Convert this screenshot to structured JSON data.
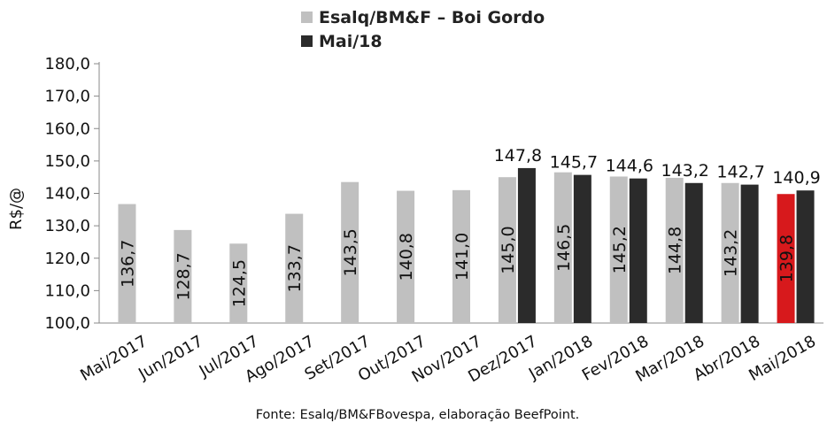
{
  "chart_data": {
    "type": "bar",
    "ylabel": "R$/@",
    "ylim": [
      100,
      180
    ],
    "yticks": [
      "100,0",
      "110,0",
      "120,0",
      "130,0",
      "140,0",
      "150,0",
      "160,0",
      "170,0",
      "180,0"
    ],
    "categories": [
      "Mai/2017",
      "Jun/2017",
      "Jul/2017",
      "Ago/2017",
      "Set/2017",
      "Out/2017",
      "Nov/2017",
      "Dez/2017",
      "Jan/2018",
      "Fev/2018",
      "Mar/2018",
      "Abr/2018",
      "Mai/2018"
    ],
    "series": [
      {
        "name": "Esalq/BM&F – Boi Gordo",
        "color": "#c0c0c0",
        "highlight_color": "#d7191c",
        "highlight_index": 12,
        "values": [
          136.7,
          128.7,
          124.5,
          133.7,
          143.5,
          140.8,
          141.0,
          145.0,
          146.5,
          145.2,
          144.8,
          143.2,
          139.8
        ],
        "labels": [
          "136,7",
          "128,7",
          "124,5",
          "133,7",
          "143,5",
          "140,8",
          "141,0",
          "145,0",
          "146,5",
          "145,2",
          "144,8",
          "143,2",
          "139,8"
        ]
      },
      {
        "name": "Mai/18",
        "color": "#2b2b2b",
        "values": [
          null,
          null,
          null,
          null,
          null,
          null,
          null,
          147.8,
          145.7,
          144.6,
          143.2,
          142.7,
          140.9
        ],
        "labels": [
          "",
          "",
          "",
          "",
          "",
          "",
          "",
          "147,8",
          "145,7",
          "144,6",
          "143,2",
          "142,7",
          "140,9"
        ]
      }
    ],
    "grid": false,
    "legend": "top-center"
  },
  "source_note": "Fonte: Esalq/BM&FBovespa, elaboração BeefPoint."
}
